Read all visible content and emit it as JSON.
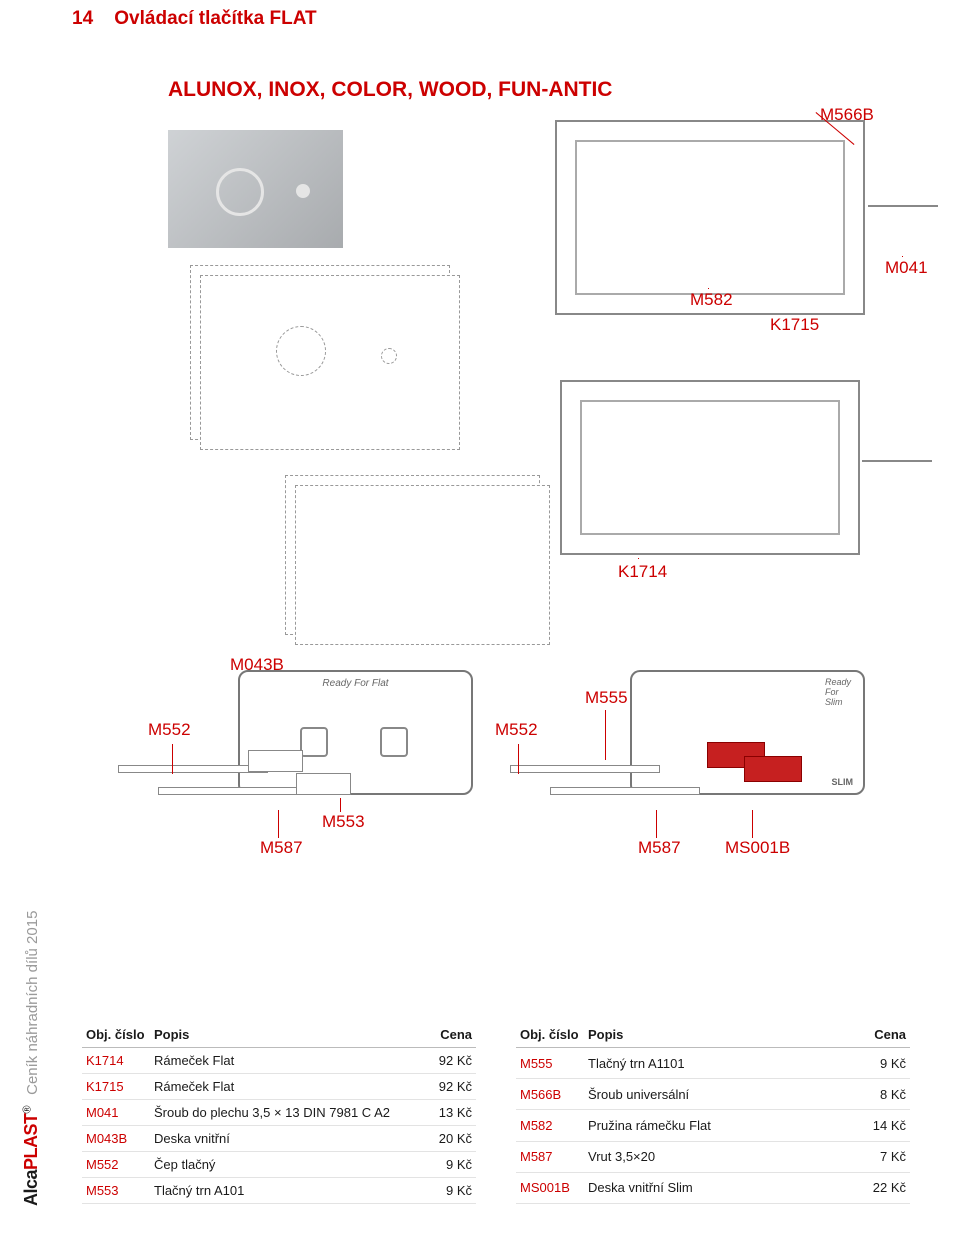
{
  "header": {
    "page_num": "14",
    "title": "Ovládací tlačítka FLAT"
  },
  "subtitle": "ALUNOX, INOX, COLOR, WOOD, FUN-ANTIC",
  "sidebar": {
    "brand_a": "Alca",
    "brand_b": "PLAST",
    "reg": "®",
    "text": "Ceník náhradních dílů 2015"
  },
  "diagram_labels": {
    "M566B": "M566B",
    "M041": "M041",
    "M582": "M582",
    "K1715": "K1715",
    "K1714": "K1714",
    "M043B": "M043B",
    "M552_L": "M552",
    "M552_R": "M552",
    "M587_L": "M587",
    "M587_R": "M587",
    "M553": "M553",
    "M555": "M555",
    "MS001B": "MS001B",
    "ReadyForFlat": "Ready        For Flat",
    "ReadyForSlim": "Ready\nFor\nSlim"
  },
  "colors": {
    "accent": "#c00",
    "text": "#1a1a1a",
    "rule": "#bbb",
    "row_rule": "#e3e3e3",
    "diagram_stroke": "#888"
  },
  "tables": {
    "headers": {
      "code": "Obj. číslo",
      "desc": "Popis",
      "price": "Cena"
    },
    "left": [
      {
        "code": "K1714",
        "desc": "Rámeček Flat",
        "price": "92 Kč"
      },
      {
        "code": "K1715",
        "desc": "Rámeček Flat",
        "price": "92 Kč"
      },
      {
        "code": "M041",
        "desc": "Šroub do plechu 3,5 × 13 DIN 7981 C A2",
        "price": "13 Kč"
      },
      {
        "code": "M043B",
        "desc": "Deska vnitřní",
        "price": "20 Kč"
      },
      {
        "code": "M552",
        "desc": "Čep tlačný",
        "price": "9 Kč"
      },
      {
        "code": "M553",
        "desc": "Tlačný trn A101",
        "price": "9 Kč"
      }
    ],
    "right": [
      {
        "code": "M555",
        "desc": "Tlačný trn A1101",
        "price": "9 Kč"
      },
      {
        "code": "M566B",
        "desc": "Šroub universální",
        "price": "8 Kč"
      },
      {
        "code": "M582",
        "desc": "Pružina  rámečku Flat",
        "price": "14 Kč"
      },
      {
        "code": "M587",
        "desc": "Vrut 3,5×20",
        "price": "7 Kč"
      },
      {
        "code": "MS001B",
        "desc": "Deska vnitřní Slim",
        "price": "22 Kč"
      }
    ]
  }
}
